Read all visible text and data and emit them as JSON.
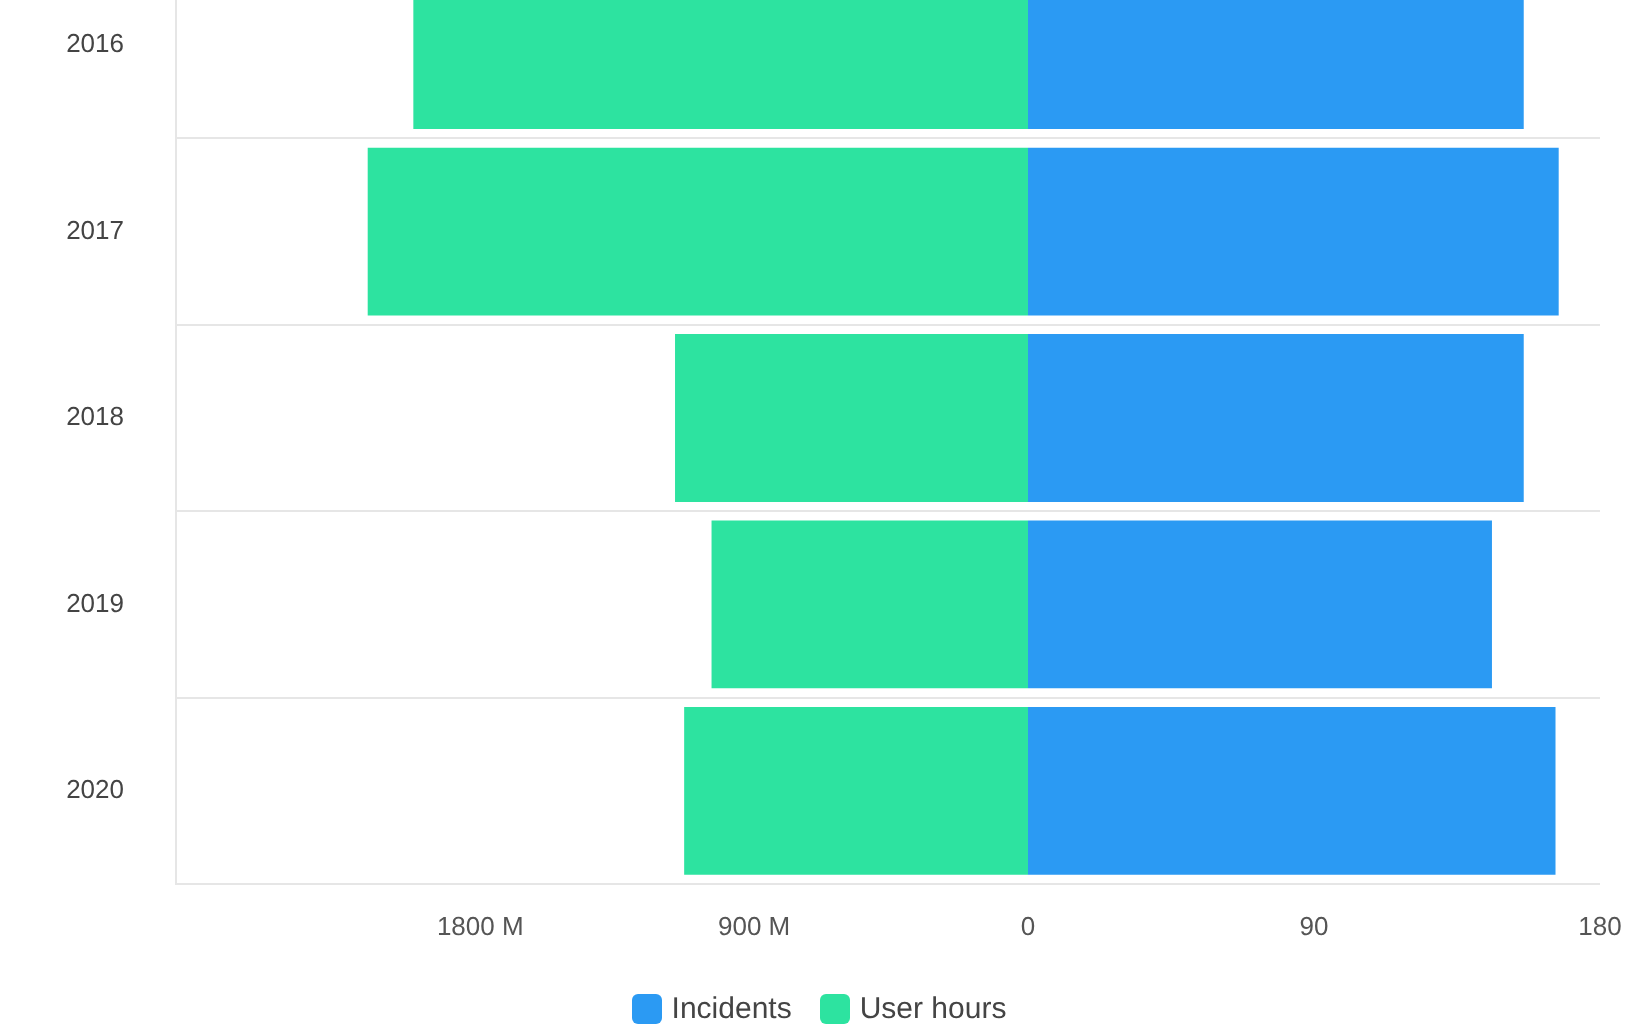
{
  "chart_data": [
    {
      "type": "bar",
      "orientation": "horizontal",
      "categories": [
        "2016",
        "2017",
        "2018",
        "2019",
        "2020"
      ],
      "series": [
        {
          "name": "User hours",
          "color": "#2de3a0",
          "values": [
            2020,
            2170,
            1160,
            1040,
            1130
          ]
        }
      ],
      "xlim": [
        2800,
        0
      ],
      "xticks": [
        {
          "value": 1800,
          "label": "1800 M"
        },
        {
          "value": 900,
          "label": "900 M"
        }
      ],
      "grid": "y",
      "legend": "bottom"
    },
    {
      "type": "bar",
      "orientation": "horizontal",
      "categories": [
        "2016",
        "2017",
        "2018",
        "2019",
        "2020"
      ],
      "series": [
        {
          "name": "Incidents",
          "color": "#2b9af3",
          "values": [
            156,
            167,
            156,
            146,
            166
          ]
        }
      ],
      "xlim": [
        0,
        180
      ],
      "xticks": [
        0,
        90,
        180
      ],
      "grid": "y",
      "legend": "bottom",
      "tick_labels": "x"
    }
  ]
}
